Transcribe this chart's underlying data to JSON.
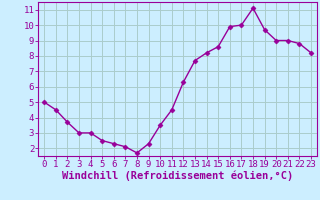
{
  "x": [
    0,
    1,
    2,
    3,
    4,
    5,
    6,
    7,
    8,
    9,
    10,
    11,
    12,
    13,
    14,
    15,
    16,
    17,
    18,
    19,
    20,
    21,
    22,
    23
  ],
  "y": [
    5.0,
    4.5,
    3.7,
    3.0,
    3.0,
    2.5,
    2.3,
    2.1,
    1.7,
    2.3,
    3.5,
    4.5,
    6.3,
    7.7,
    8.2,
    8.6,
    9.9,
    10.0,
    11.1,
    9.7,
    9.0,
    9.0,
    8.8,
    8.2
  ],
  "line_color": "#990099",
  "marker": "D",
  "marker_size": 2.5,
  "bg_color": "#cceeff",
  "grid_color": "#aacccc",
  "xlabel": "Windchill (Refroidissement éolien,°C)",
  "xlabel_color": "#990099",
  "ylabel_ticks": [
    2,
    3,
    4,
    5,
    6,
    7,
    8,
    9,
    10,
    11
  ],
  "xtick_labels": [
    "0",
    "1",
    "2",
    "3",
    "4",
    "5",
    "6",
    "7",
    "8",
    "9",
    "10",
    "11",
    "12",
    "13",
    "14",
    "15",
    "16",
    "17",
    "18",
    "19",
    "20",
    "21",
    "22",
    "23"
  ],
  "ylim": [
    1.5,
    11.5
  ],
  "xlim": [
    -0.5,
    23.5
  ],
  "tick_color": "#990099",
  "tick_fontsize": 6.5,
  "xlabel_fontsize": 7.5,
  "linewidth": 1.0
}
